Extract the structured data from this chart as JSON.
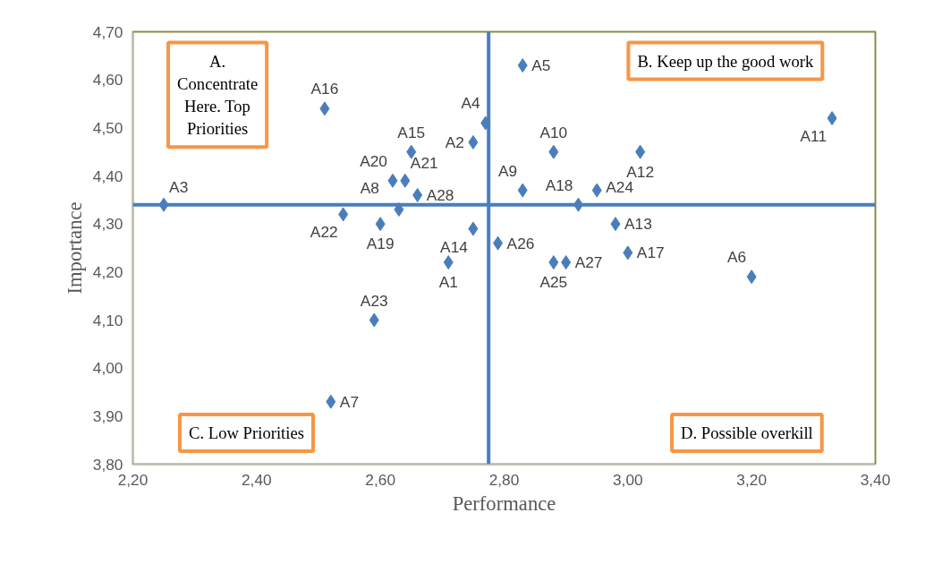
{
  "chart_data": {
    "type": "scatter",
    "xlabel": "Performance",
    "ylabel": "Importance",
    "xlim": [
      2.2,
      3.4
    ],
    "ylim": [
      3.8,
      4.7
    ],
    "xticks": [
      {
        "value": 2.2,
        "label": "2,20"
      },
      {
        "value": 2.4,
        "label": "2,40"
      },
      {
        "value": 2.6,
        "label": "2,60"
      },
      {
        "value": 2.8,
        "label": "2,80"
      },
      {
        "value": 3.0,
        "label": "3,00"
      },
      {
        "value": 3.2,
        "label": "3,20"
      },
      {
        "value": 3.4,
        "label": "3,40"
      }
    ],
    "yticks": [
      {
        "value": 3.8,
        "label": "3,80"
      },
      {
        "value": 3.9,
        "label": "3,90"
      },
      {
        "value": 4.0,
        "label": "4,00"
      },
      {
        "value": 4.1,
        "label": "4,10"
      },
      {
        "value": 4.2,
        "label": "4,20"
      },
      {
        "value": 4.3,
        "label": "4,30"
      },
      {
        "value": 4.4,
        "label": "4,40"
      },
      {
        "value": 4.5,
        "label": "4,50"
      },
      {
        "value": 4.6,
        "label": "4,60"
      },
      {
        "value": 4.7,
        "label": "4,70"
      }
    ],
    "grid": false,
    "marker": "diamond",
    "series": [
      {
        "color": "#4a7ebb",
        "x": [
          2.71,
          2.75,
          2.25,
          2.77,
          2.83,
          3.2,
          2.52,
          2.63,
          2.83,
          2.88,
          3.33,
          3.02,
          2.98,
          2.75,
          2.65,
          2.51,
          3.0,
          2.92,
          2.6,
          2.62,
          2.64,
          2.54,
          2.59,
          2.95,
          2.88,
          2.79,
          2.9,
          2.66
        ],
        "values": [
          4.22,
          4.47,
          4.34,
          4.51,
          4.63,
          4.19,
          3.93,
          4.33,
          4.37,
          4.45,
          4.52,
          4.45,
          4.3,
          4.29,
          4.45,
          4.54,
          4.24,
          4.34,
          4.3,
          4.39,
          4.39,
          4.32,
          4.1,
          4.37,
          4.22,
          4.26,
          4.22,
          4.36
        ]
      }
    ],
    "ref_lines": [
      {
        "axis": "x",
        "value": 2.775,
        "color": "#4a7ebb"
      },
      {
        "axis": "y",
        "value": 4.34,
        "color": "#4a7ebb"
      }
    ],
    "annotations": [
      {
        "text": "A1",
        "x": 2.71,
        "y": 4.22
      },
      {
        "text": "A2",
        "x": 2.75,
        "y": 4.47
      },
      {
        "text": "A3",
        "x": 2.25,
        "y": 4.34
      },
      {
        "text": "A4",
        "x": 2.77,
        "y": 4.51
      },
      {
        "text": "A5",
        "x": 2.83,
        "y": 4.63
      },
      {
        "text": "A6",
        "x": 3.2,
        "y": 4.19
      },
      {
        "text": "A7",
        "x": 2.52,
        "y": 3.93
      },
      {
        "text": "A8",
        "x": 2.63,
        "y": 4.33
      },
      {
        "text": "A9",
        "x": 2.83,
        "y": 4.37
      },
      {
        "text": "A10",
        "x": 2.88,
        "y": 4.45
      },
      {
        "text": "A11",
        "x": 3.33,
        "y": 4.52
      },
      {
        "text": "A12",
        "x": 3.02,
        "y": 4.45
      },
      {
        "text": "A13",
        "x": 2.98,
        "y": 4.3
      },
      {
        "text": "A14",
        "x": 2.75,
        "y": 4.29
      },
      {
        "text": "A15",
        "x": 2.65,
        "y": 4.45
      },
      {
        "text": "A16",
        "x": 2.51,
        "y": 4.54
      },
      {
        "text": "A17",
        "x": 3.0,
        "y": 4.24
      },
      {
        "text": "A18",
        "x": 2.92,
        "y": 4.34
      },
      {
        "text": "A19",
        "x": 2.6,
        "y": 4.3
      },
      {
        "text": "A20",
        "x": 2.62,
        "y": 4.39
      },
      {
        "text": "A21",
        "x": 2.64,
        "y": 4.39
      },
      {
        "text": "A22",
        "x": 2.54,
        "y": 4.32
      },
      {
        "text": "A23",
        "x": 2.59,
        "y": 4.1
      },
      {
        "text": "A24",
        "x": 2.95,
        "y": 4.37
      },
      {
        "text": "A25",
        "x": 2.88,
        "y": 4.22
      },
      {
        "text": "A26",
        "x": 2.79,
        "y": 4.26
      },
      {
        "text": "A27",
        "x": 2.9,
        "y": 4.22
      },
      {
        "text": "A28",
        "x": 2.66,
        "y": 4.36
      },
      "A. Concentrate Here. Top Priorities",
      "B. Keep up the good work",
      "C. Low Priorities",
      "D. Possible overkill"
    ]
  }
}
